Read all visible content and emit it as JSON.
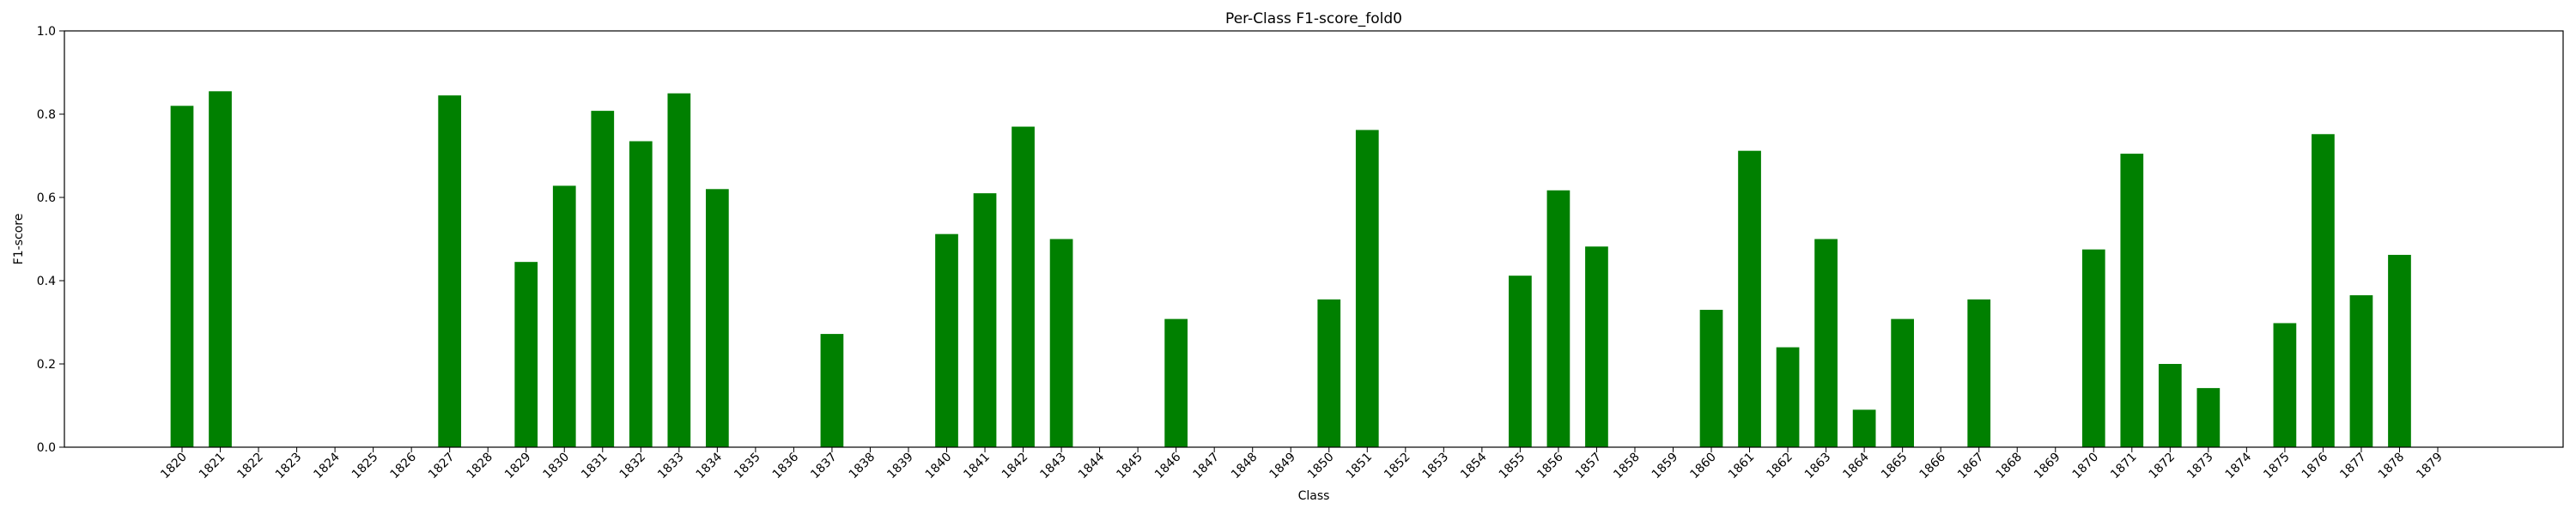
{
  "chart_data": {
    "type": "bar",
    "title": "Per-Class F1-score_fold0",
    "xlabel": "Class",
    "ylabel": "F1-score",
    "ylim": [
      0,
      1.0
    ],
    "yticks": [
      "0.0",
      "0.2",
      "0.4",
      "0.6",
      "0.8",
      "1.0"
    ],
    "grid": false,
    "bar_color": "#008000",
    "categories": [
      "1820",
      "1821",
      "1822",
      "1823",
      "1824",
      "1825",
      "1826",
      "1827",
      "1828",
      "1829",
      "1830",
      "1831",
      "1832",
      "1833",
      "1834",
      "1835",
      "1836",
      "1837",
      "1838",
      "1839",
      "1840",
      "1841",
      "1842",
      "1843",
      "1844",
      "1845",
      "1846",
      "1847",
      "1848",
      "1849",
      "1850",
      "1851",
      "1852",
      "1853",
      "1854",
      "1855",
      "1856",
      "1857",
      "1858",
      "1859",
      "1860",
      "1861",
      "1862",
      "1863",
      "1864",
      "1865",
      "1866",
      "1867",
      "1868",
      "1869",
      "1870",
      "1871",
      "1872",
      "1873",
      "1874",
      "1875",
      "1876",
      "1877",
      "1878",
      "1879"
    ],
    "values": [
      0.82,
      0.855,
      0,
      0,
      0,
      0,
      0,
      0.845,
      0,
      0.445,
      0.628,
      0.808,
      0.735,
      0.85,
      0.62,
      0,
      0,
      0.272,
      0,
      0,
      0.512,
      0.61,
      0.77,
      0.5,
      0,
      0,
      0.308,
      0,
      0,
      0,
      0.355,
      0.762,
      0,
      0,
      0,
      0.412,
      0.617,
      0.482,
      0,
      0,
      0.33,
      0.712,
      0.24,
      0.5,
      0.09,
      0.308,
      0,
      0.355,
      0,
      0,
      0.475,
      0.705,
      0.2,
      0.142,
      0,
      0.298,
      0.752,
      0.365,
      0.462,
      0
    ]
  }
}
